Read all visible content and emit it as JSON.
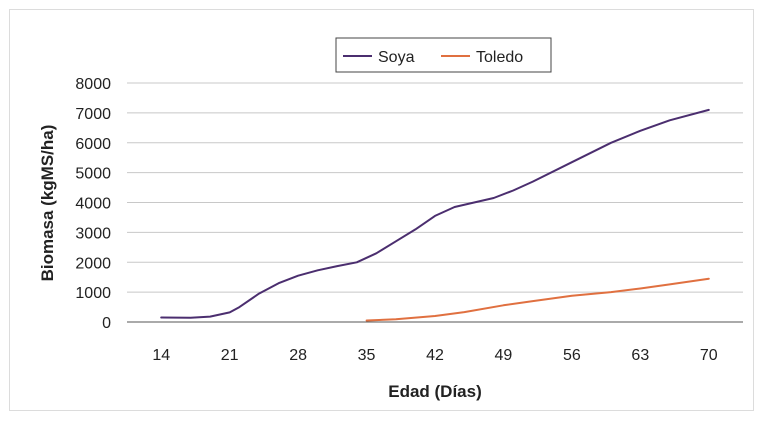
{
  "chart_data": {
    "type": "line",
    "title": "",
    "xlabel": "Edad (Días)",
    "ylabel": "Biomasa (kgMS/ha)",
    "x_ticks": [
      14,
      21,
      28,
      35,
      42,
      49,
      56,
      63,
      70
    ],
    "y_ticks": [
      0,
      1000,
      2000,
      3000,
      4000,
      5000,
      6000,
      7000,
      8000
    ],
    "xlim": [
      10.5,
      73.5
    ],
    "ylim": [
      0,
      8000
    ],
    "grid": "horizontal",
    "legend_position": "top-right",
    "series": [
      {
        "name": "Soya",
        "color": "#4b2e6f",
        "points": [
          [
            14,
            150
          ],
          [
            17,
            140
          ],
          [
            19,
            180
          ],
          [
            21,
            320
          ],
          [
            22,
            500
          ],
          [
            24,
            950
          ],
          [
            26,
            1300
          ],
          [
            28,
            1550
          ],
          [
            30,
            1730
          ],
          [
            32,
            1870
          ],
          [
            34,
            2000
          ],
          [
            36,
            2300
          ],
          [
            38,
            2700
          ],
          [
            40,
            3100
          ],
          [
            42,
            3550
          ],
          [
            44,
            3850
          ],
          [
            46,
            4000
          ],
          [
            48,
            4150
          ],
          [
            50,
            4400
          ],
          [
            52,
            4700
          ],
          [
            56,
            5350
          ],
          [
            60,
            6000
          ],
          [
            63,
            6400
          ],
          [
            66,
            6750
          ],
          [
            70,
            7100
          ]
        ]
      },
      {
        "name": "Toledo",
        "color": "#e07040",
        "points": [
          [
            35,
            50
          ],
          [
            38,
            90
          ],
          [
            42,
            200
          ],
          [
            45,
            330
          ],
          [
            49,
            560
          ],
          [
            52,
            700
          ],
          [
            56,
            880
          ],
          [
            60,
            1000
          ],
          [
            63,
            1120
          ],
          [
            66,
            1260
          ],
          [
            70,
            1450
          ]
        ]
      }
    ]
  }
}
